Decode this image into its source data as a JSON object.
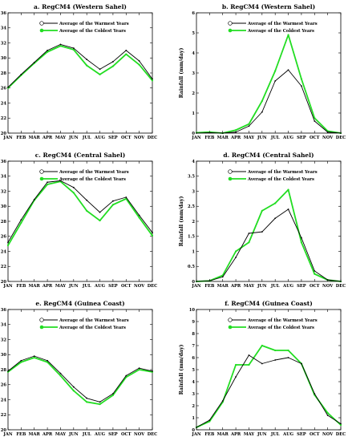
{
  "colors": {
    "warm": "#000000",
    "cold": "#22dd22"
  },
  "chart_data": [
    {
      "type": "line",
      "title": "a. RegCM4 (Western Sahel)",
      "ylabel": "Surface temperature (degree C)",
      "categories": [
        "JAN",
        "FEB",
        "MAR",
        "APR",
        "MAY",
        "JUN",
        "JUL",
        "AUG",
        "SEP",
        "OCT",
        "NOV",
        "DEC"
      ],
      "ylim": [
        20,
        36
      ],
      "yticks": [
        20,
        22,
        24,
        26,
        28,
        30,
        32,
        34,
        36
      ],
      "series": [
        {
          "name": "Average of the Warmest Years",
          "values": [
            26.1,
            27.8,
            29.4,
            31.0,
            31.8,
            31.3,
            29.8,
            28.5,
            29.5,
            31.0,
            29.6,
            27.2
          ]
        },
        {
          "name": "Average of the Coldest Years",
          "values": [
            26.0,
            27.7,
            29.3,
            30.8,
            31.6,
            31.1,
            29.0,
            27.8,
            28.9,
            30.5,
            29.1,
            27.0
          ]
        }
      ]
    },
    {
      "type": "line",
      "title": "b. RegCM4 (Western Sahel)",
      "ylabel": "Rainfall (mm/day)",
      "categories": [
        "JAN",
        "FEB",
        "MAR",
        "APR",
        "MAY",
        "JUN",
        "JUL",
        "AUG",
        "SEP",
        "OCT",
        "NOV",
        "DEC"
      ],
      "ylim": [
        0,
        6
      ],
      "yticks": [
        0,
        1,
        2,
        3,
        4,
        5,
        6
      ],
      "series": [
        {
          "name": "Average of the Warmest Years",
          "values": [
            0.0,
            0.02,
            0.0,
            0.05,
            0.35,
            1.05,
            2.6,
            3.15,
            2.35,
            0.6,
            0.05,
            0.0
          ]
        },
        {
          "name": "Average of the Coldest Years",
          "values": [
            0.02,
            0.05,
            0.0,
            0.15,
            0.45,
            1.6,
            3.1,
            4.9,
            2.7,
            0.75,
            0.1,
            0.0
          ]
        }
      ]
    },
    {
      "type": "line",
      "title": "c. RegCM4 (Central Sahel)",
      "ylabel": "Surface temperature (degree C)",
      "categories": [
        "JAN",
        "FEB",
        "MAR",
        "APR",
        "MAY",
        "JUN",
        "JUL",
        "AUG",
        "SEP",
        "OCT",
        "NOV",
        "DEC"
      ],
      "ylim": [
        20,
        36
      ],
      "yticks": [
        20,
        22,
        24,
        26,
        28,
        30,
        32,
        34,
        36
      ],
      "series": [
        {
          "name": "Average of the Warmest Years",
          "values": [
            25.2,
            28.2,
            30.9,
            33.2,
            33.4,
            32.5,
            30.8,
            29.2,
            30.7,
            31.2,
            28.8,
            26.5
          ]
        },
        {
          "name": "Average of the Coldest Years",
          "values": [
            24.8,
            27.8,
            30.8,
            32.9,
            33.3,
            31.8,
            29.4,
            28.1,
            30.2,
            31.0,
            28.5,
            26.1
          ]
        }
      ]
    },
    {
      "type": "line",
      "title": "d. RegCM4 (Central Sahel)",
      "ylabel": "Rainfall (mm/day)",
      "categories": [
        "JAN",
        "FEB",
        "MAR",
        "APR",
        "MAY",
        "JUN",
        "JUL",
        "AUG",
        "SEP",
        "OCT",
        "NOV",
        "DEC"
      ],
      "ylim": [
        0,
        4
      ],
      "yticks": [
        0,
        0.5,
        1,
        1.5,
        2,
        2.5,
        3,
        3.5,
        4
      ],
      "series": [
        {
          "name": "Average of the Warmest Years",
          "values": [
            0.0,
            0.02,
            0.15,
            0.8,
            1.6,
            1.65,
            2.1,
            2.4,
            1.45,
            0.35,
            0.05,
            0.0
          ]
        },
        {
          "name": "Average of the Coldest Years",
          "values": [
            0.0,
            0.02,
            0.2,
            1.0,
            1.3,
            2.35,
            2.6,
            3.05,
            1.3,
            0.25,
            0.05,
            0.0
          ]
        }
      ]
    },
    {
      "type": "line",
      "title": "e. RegCM4 (Guinea Coast)",
      "ylabel": "Surface temperature (degree C)",
      "categories": [
        "JAN",
        "FEB",
        "MAR",
        "APR",
        "MAY",
        "JUN",
        "JUL",
        "AUG",
        "SEP",
        "OCT",
        "NOV",
        "DEC"
      ],
      "ylim": [
        20,
        36
      ],
      "yticks": [
        20,
        22,
        24,
        26,
        28,
        30,
        32,
        34,
        36
      ],
      "series": [
        {
          "name": "Average of the Warmest Years",
          "values": [
            27.8,
            29.2,
            29.8,
            29.2,
            27.5,
            25.7,
            24.2,
            23.7,
            24.8,
            27.2,
            28.2,
            27.8
          ]
        },
        {
          "name": "Average of the Coldest Years",
          "values": [
            27.7,
            29.0,
            29.6,
            29.0,
            27.2,
            25.2,
            23.7,
            23.4,
            24.6,
            27.0,
            28.0,
            27.7
          ]
        }
      ]
    },
    {
      "type": "line",
      "title": "f. RegCM4 (Guinea Coast)",
      "ylabel": "Rainfall (mm/day)",
      "categories": [
        "JAN",
        "FEB",
        "MAR",
        "APR",
        "MAY",
        "JUN",
        "JUL",
        "AUG",
        "SEP",
        "OCT",
        "NOV",
        "DEC"
      ],
      "ylim": [
        0,
        10
      ],
      "yticks": [
        0,
        1,
        2,
        3,
        4,
        5,
        6,
        7,
        8,
        9,
        10
      ],
      "series": [
        {
          "name": "Average of the Warmest Years",
          "values": [
            0.2,
            0.8,
            2.4,
            4.4,
            6.2,
            5.5,
            5.8,
            6.0,
            5.5,
            3.0,
            1.2,
            0.5
          ]
        },
        {
          "name": "Average of the Coldest Years",
          "values": [
            0.2,
            0.7,
            2.3,
            5.4,
            5.4,
            7.0,
            6.6,
            6.6,
            5.5,
            2.9,
            1.4,
            0.4
          ]
        }
      ]
    }
  ]
}
